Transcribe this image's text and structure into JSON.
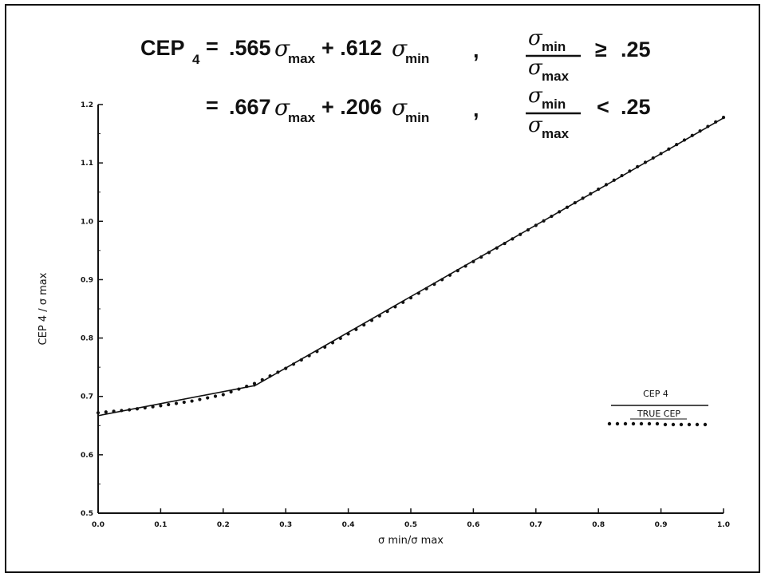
{
  "equation": {
    "lhs": "CEP",
    "lhs_sub": "4",
    "eq": "=",
    "sigma": "σ",
    "sub_max": "max",
    "sub_min": "min",
    "row1": {
      "c1": ".565",
      "c2": "+ .612",
      "comma": ",",
      "rel": "≥",
      "threshold": ".25"
    },
    "row2": {
      "c1": ".667",
      "c2": "+ .206",
      "comma": ",",
      "rel": "<",
      "threshold": ".25"
    }
  },
  "legend": {
    "solid_label": "CEP  4",
    "dotted_label": "TRUE  CEP"
  },
  "chart_data": {
    "type": "line",
    "xlabel": "σ min/σ max",
    "ylabel": "CEP  4 / σ max",
    "xlim": [
      0.0,
      1.0
    ],
    "ylim": [
      0.5,
      1.2
    ],
    "x_ticks": [
      "0.0",
      "0.1",
      "0.2",
      "0.3",
      "0.4",
      "0.5",
      "0.6",
      "0.7",
      "0.8",
      "0.9",
      "1.0"
    ],
    "y_ticks": [
      "0.5",
      "0.6",
      "0.7",
      "0.8",
      "0.9",
      "1.0",
      "1.1",
      "1.2"
    ],
    "grid": false,
    "legend_position": "right",
    "series": [
      {
        "name": "CEP  4",
        "style": "solid",
        "x": [
          0.0,
          0.25,
          0.25,
          1.0
        ],
        "y": [
          0.667,
          0.7185,
          0.718,
          1.177
        ]
      },
      {
        "name": "TRUE  CEP",
        "style": "dotted",
        "x": [
          0.0,
          0.05,
          0.1,
          0.15,
          0.2,
          0.25,
          0.3,
          0.35,
          0.4,
          0.45,
          0.5,
          0.55,
          0.6,
          0.65,
          0.7,
          0.75,
          0.8,
          0.85,
          0.9,
          0.95,
          1.0
        ],
        "y": [
          0.672,
          0.677,
          0.684,
          0.692,
          0.703,
          0.722,
          0.748,
          0.777,
          0.807,
          0.838,
          0.869,
          0.9,
          0.931,
          0.962,
          0.993,
          1.024,
          1.055,
          1.086,
          1.116,
          1.147,
          1.178
        ]
      }
    ]
  }
}
